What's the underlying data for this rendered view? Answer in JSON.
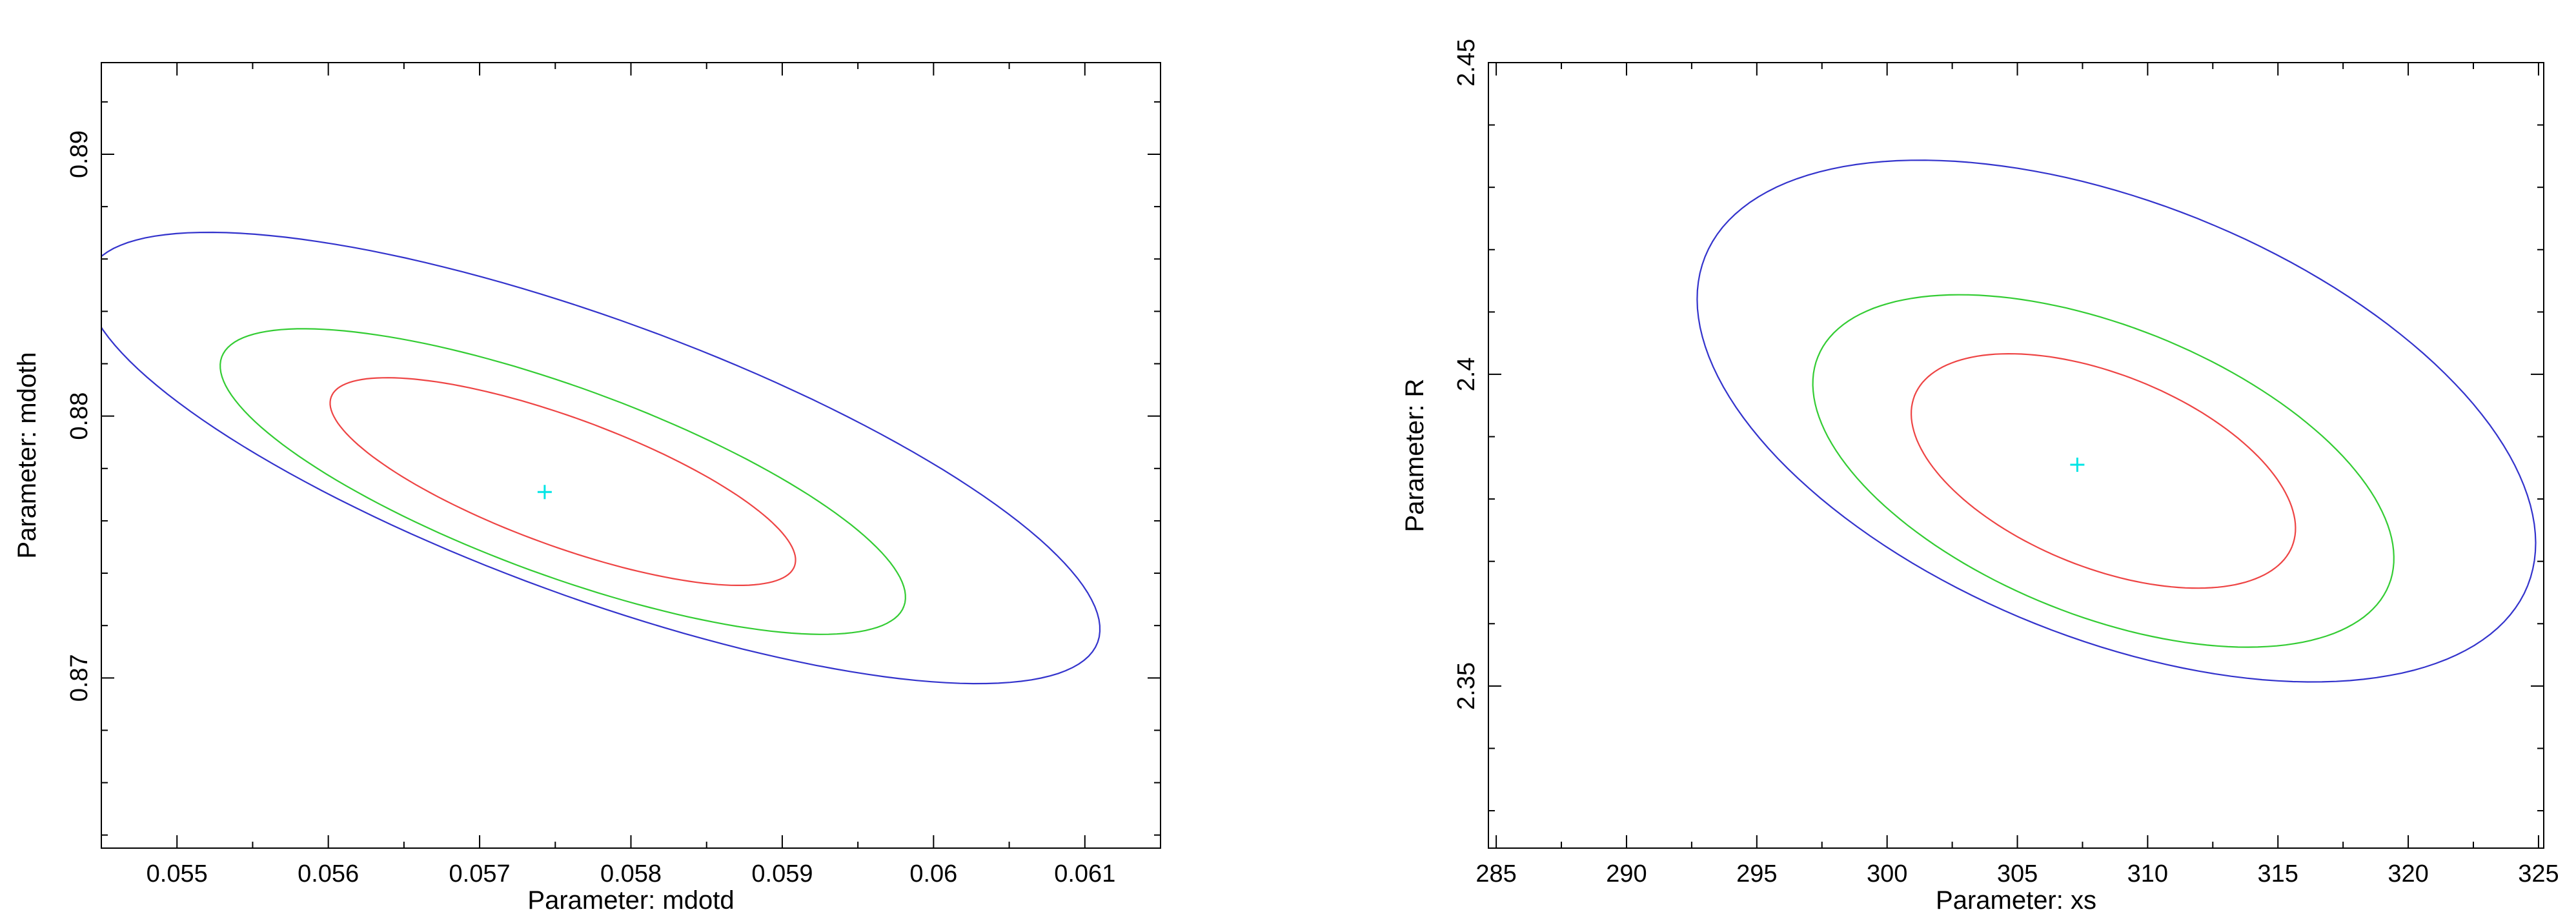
{
  "chart_data": [
    {
      "type": "contour",
      "xlabel": "Parameter: mdotd",
      "ylabel": "Parameter: mdoth",
      "xlim": [
        0.0545,
        0.0615
      ],
      "ylim": [
        0.8635,
        0.8935
      ],
      "x_ticks": [
        0.055,
        0.056,
        0.057,
        0.058,
        0.059,
        0.06,
        0.061
      ],
      "x_tick_labels": [
        "0.055",
        "0.056",
        "0.057",
        "0.058",
        "0.059",
        "0.06",
        "0.061"
      ],
      "y_ticks": [
        0.87,
        0.88,
        0.89
      ],
      "y_tick_labels": [
        "0.87",
        "0.88",
        "0.89"
      ],
      "best_fit": {
        "x": 0.05743,
        "y": 0.8771,
        "color": "#00e5e5"
      },
      "contours": [
        {
          "color": "#ee4444",
          "center": [
            0.05755,
            0.8775
          ],
          "a": 0.00163,
          "b": 0.00245,
          "phi": -0.35
        },
        {
          "color": "#33cc33",
          "center": [
            0.05755,
            0.8775
          ],
          "a": 0.0024,
          "b": 0.0036,
          "phi": -0.35
        },
        {
          "color": "#3333cc",
          "center": [
            0.05775,
            0.8784
          ],
          "a": 0.00355,
          "b": 0.0053,
          "phi": -0.35
        }
      ],
      "grid": false
    },
    {
      "type": "contour",
      "xlabel": "Parameter: xs",
      "ylabel": "Parameter: R",
      "xlim": [
        284.7,
        325.2
      ],
      "ylim": [
        2.324,
        2.45
      ],
      "x_ticks": [
        285,
        290,
        295,
        300,
        305,
        310,
        315,
        320,
        325
      ],
      "x_tick_labels": [
        "285",
        "290",
        "295",
        "300",
        "305",
        "310",
        "315",
        "320",
        "325"
      ],
      "y_ticks": [
        2.35,
        2.4,
        2.45
      ],
      "y_tick_labels": [
        "2.35",
        "2.4",
        "2.45"
      ],
      "best_fit": {
        "x": 307.3,
        "y": 2.3855,
        "color": "#00e5e5"
      },
      "contours": [
        {
          "color": "#ee4444",
          "center": [
            308.3,
            2.3845
          ],
          "a": 7.8,
          "b": 0.0155,
          "phi": -0.38
        },
        {
          "color": "#33cc33",
          "center": [
            308.3,
            2.3845
          ],
          "a": 11.8,
          "b": 0.0232,
          "phi": -0.38
        },
        {
          "color": "#3333cc",
          "center": [
            308.8,
            2.3925
          ],
          "a": 17.0,
          "b": 0.035,
          "phi": -0.38
        }
      ],
      "grid": false
    }
  ]
}
